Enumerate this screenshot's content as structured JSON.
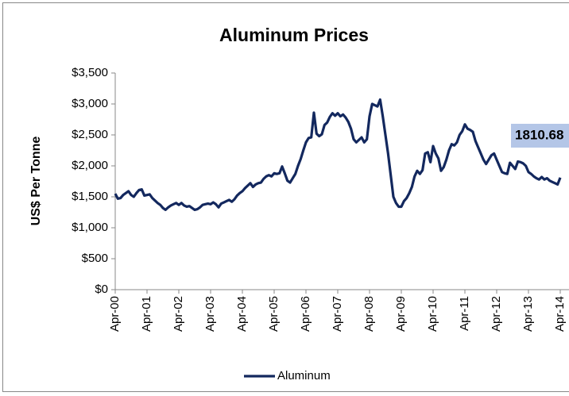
{
  "chart_data": {
    "type": "line",
    "title": "Aluminum Prices",
    "y_label": "US$ Per Tonne",
    "categories": [
      "Apr-00",
      null,
      null,
      null,
      null,
      null,
      null,
      null,
      null,
      null,
      null,
      null,
      "Apr-01",
      null,
      null,
      null,
      null,
      null,
      null,
      null,
      null,
      null,
      null,
      null,
      "Apr-02",
      null,
      null,
      null,
      null,
      null,
      null,
      null,
      null,
      null,
      null,
      null,
      "Apr-03",
      null,
      null,
      null,
      null,
      null,
      null,
      null,
      null,
      null,
      null,
      null,
      "Apr-04",
      null,
      null,
      null,
      null,
      null,
      null,
      null,
      null,
      null,
      null,
      null,
      "Apr-05",
      null,
      null,
      null,
      null,
      null,
      null,
      null,
      null,
      null,
      null,
      null,
      "Apr-06",
      null,
      null,
      null,
      null,
      null,
      null,
      null,
      null,
      null,
      null,
      null,
      "Apr-07",
      null,
      null,
      null,
      null,
      null,
      null,
      null,
      null,
      null,
      null,
      null,
      "Apr-08",
      null,
      null,
      null,
      null,
      null,
      null,
      null,
      null,
      null,
      null,
      null,
      "Apr-09",
      null,
      null,
      null,
      null,
      null,
      null,
      null,
      null,
      null,
      null,
      null,
      "Apr-10",
      null,
      null,
      null,
      null,
      null,
      null,
      null,
      null,
      null,
      null,
      null,
      "Apr-11",
      null,
      null,
      null,
      null,
      null,
      null,
      null,
      null,
      null,
      null,
      null,
      "Apr-12",
      null,
      null,
      null,
      null,
      null,
      null,
      null,
      null,
      null,
      null,
      null,
      "Apr-13",
      null,
      null,
      null,
      null,
      null,
      null,
      null,
      null,
      null,
      null,
      null,
      "Apr-14"
    ],
    "series": [
      {
        "name": "Aluminum",
        "color": "#13285e",
        "values": [
          1550,
          1470,
          1480,
          1530,
          1560,
          1590,
          1530,
          1500,
          1560,
          1610,
          1620,
          1520,
          1530,
          1540,
          1480,
          1440,
          1400,
          1370,
          1320,
          1290,
          1330,
          1360,
          1380,
          1400,
          1370,
          1400,
          1360,
          1340,
          1350,
          1320,
          1290,
          1300,
          1330,
          1370,
          1380,
          1390,
          1380,
          1410,
          1380,
          1330,
          1390,
          1410,
          1430,
          1450,
          1420,
          1460,
          1520,
          1560,
          1590,
          1640,
          1680,
          1720,
          1660,
          1700,
          1720,
          1730,
          1790,
          1830,
          1850,
          1830,
          1880,
          1870,
          1880,
          1990,
          1880,
          1760,
          1730,
          1800,
          1870,
          2000,
          2110,
          2250,
          2380,
          2450,
          2460,
          2860,
          2520,
          2480,
          2510,
          2660,
          2700,
          2790,
          2850,
          2810,
          2850,
          2800,
          2830,
          2780,
          2710,
          2600,
          2430,
          2380,
          2420,
          2460,
          2380,
          2430,
          2800,
          3000,
          2980,
          2960,
          3070,
          2800,
          2500,
          2200,
          1850,
          1500,
          1400,
          1340,
          1340,
          1430,
          1480,
          1560,
          1660,
          1830,
          1920,
          1870,
          1930,
          2200,
          2220,
          2060,
          2320,
          2200,
          2120,
          1920,
          1980,
          2100,
          2250,
          2350,
          2330,
          2380,
          2500,
          2560,
          2670,
          2600,
          2580,
          2550,
          2400,
          2300,
          2200,
          2100,
          2030,
          2100,
          2170,
          2200,
          2100,
          2000,
          1900,
          1880,
          1870,
          2050,
          2000,
          1950,
          2070,
          2060,
          2040,
          2000,
          1900,
          1870,
          1830,
          1800,
          1780,
          1820,
          1780,
          1800,
          1760,
          1740,
          1720,
          1700,
          1810.68
        ]
      }
    ],
    "ylim": [
      0,
      3500
    ],
    "yticks": [
      {
        "value": 0,
        "label": "$0"
      },
      {
        "value": 500,
        "label": "$500"
      },
      {
        "value": 1000,
        "label": "$1,000"
      },
      {
        "value": 1500,
        "label": "$1,500"
      },
      {
        "value": 2000,
        "label": "$2,000"
      },
      {
        "value": 2500,
        "label": "$2,500"
      },
      {
        "value": 3000,
        "label": "$3,000"
      },
      {
        "value": 3500,
        "label": "$3,500"
      }
    ],
    "grid": false,
    "legend": "bottom"
  }
}
